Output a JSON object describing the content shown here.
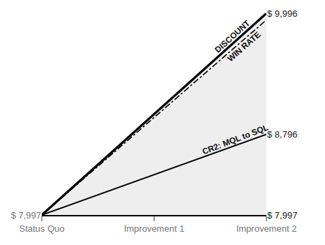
{
  "chart_data": {
    "type": "line",
    "categories": [
      "Status Quo",
      "Improvement 1",
      "Improvement 2"
    ],
    "series": [
      {
        "name": "DISCOUNT",
        "color": "#000000",
        "line_style": "solid",
        "values": [
          7997,
          8997,
          9996
        ]
      },
      {
        "name": "WIN RATE",
        "color": "#000000",
        "line_style": "dashdot",
        "values": [
          7997,
          8964,
          9930
        ]
      },
      {
        "name": "CR2: MQL to SQL",
        "color": "#000000",
        "line_style": "solid",
        "axis": "y2",
        "values": [
          7997,
          8397,
          8796
        ]
      }
    ],
    "ylim": [
      7997,
      9996
    ],
    "yticks": [
      {
        "value": 7997,
        "label": "$ 7,997"
      }
    ],
    "y2lim": [
      7997,
      9996
    ],
    "y2ticks": [
      {
        "value": 7997,
        "label": "$ 7,997"
      },
      {
        "value": 8796,
        "label": "$ 8,796"
      },
      {
        "value": 9996,
        "label": "$ 9,996"
      }
    ],
    "grid": false
  }
}
